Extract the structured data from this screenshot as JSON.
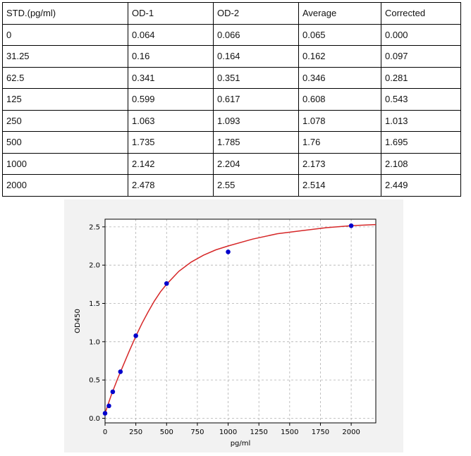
{
  "table": {
    "headers": [
      "STD.(pg/ml)",
      "OD-1",
      "OD-2",
      "Average",
      "Corrected"
    ],
    "rows": [
      [
        "0",
        "0.064",
        "0.066",
        "0.065",
        "0.000"
      ],
      [
        "31.25",
        "0.16",
        "0.164",
        "0.162",
        "0.097"
      ],
      [
        "62.5",
        "0.341",
        "0.351",
        "0.346",
        "0.281"
      ],
      [
        "125",
        "0.599",
        "0.617",
        "0.608",
        "0.543"
      ],
      [
        "250",
        "1.063",
        "1.093",
        "1.078",
        "1.013"
      ],
      [
        "500",
        "1.735",
        "1.785",
        "1.76",
        "1.695"
      ],
      [
        "1000",
        "2.142",
        "2.204",
        "2.173",
        "2.108"
      ],
      [
        "2000",
        "2.478",
        "2.55",
        "2.514",
        "2.449"
      ]
    ]
  },
  "chart_data": {
    "type": "scatter",
    "title": "",
    "xlabel": "pg/ml",
    "ylabel": "OD450",
    "xlim": [
      0,
      2200
    ],
    "ylim": [
      -0.06,
      2.6
    ],
    "xticks": [
      0,
      250,
      500,
      750,
      1000,
      1250,
      1500,
      1750,
      2000
    ],
    "yticks": [
      0.0,
      0.5,
      1.0,
      1.5,
      2.0,
      2.5
    ],
    "ytick_labels": [
      "0.0",
      "0.5",
      "1.0",
      "1.5",
      "2.0",
      "2.5"
    ],
    "grid": true,
    "points": {
      "x": [
        0,
        31.25,
        62.5,
        125,
        250,
        500,
        1000,
        2000
      ],
      "y": [
        0.065,
        0.162,
        0.346,
        0.608,
        1.078,
        1.76,
        2.173,
        2.514
      ],
      "color": "#0000cc"
    },
    "fit_curve": {
      "x": [
        0,
        50,
        100,
        150,
        200,
        250,
        300,
        350,
        400,
        450,
        500,
        600,
        700,
        800,
        900,
        1000,
        1200,
        1400,
        1600,
        1800,
        2000,
        2200
      ],
      "y": [
        0.065,
        0.3,
        0.51,
        0.7,
        0.89,
        1.07,
        1.24,
        1.39,
        1.53,
        1.65,
        1.75,
        1.92,
        2.04,
        2.13,
        2.2,
        2.25,
        2.34,
        2.41,
        2.45,
        2.49,
        2.515,
        2.53
      ],
      "color": "#d62728"
    }
  }
}
